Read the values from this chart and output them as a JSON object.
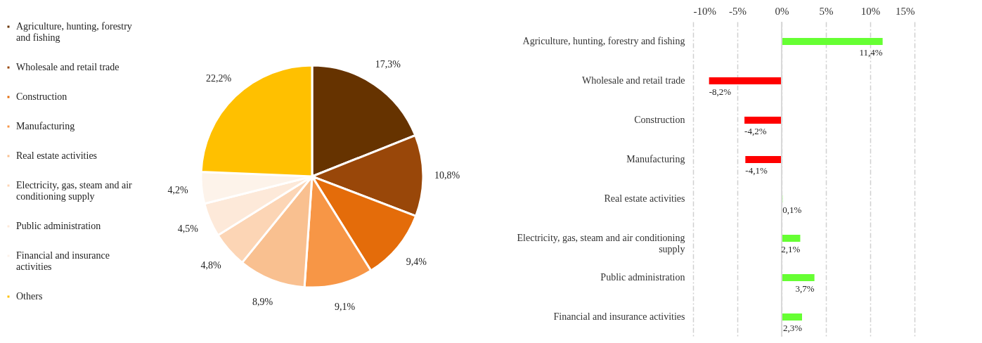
{
  "chart_data": [
    {
      "type": "pie",
      "categories": [
        "Agriculture, hunting, forestry and fishing",
        "Wholesale and retail trade",
        "Construction",
        "Manufacturing",
        "Real estate activities",
        "Electricity, gas, steam and air conditioning supply",
        "Public administration",
        "Financial and insurance activities",
        "Others"
      ],
      "values": [
        17.3,
        10.8,
        9.4,
        9.1,
        8.9,
        4.8,
        4.5,
        4.2,
        22.2
      ],
      "value_labels": [
        "17,3%",
        "10,8%",
        "9,4%",
        "9,1%",
        "8,9%",
        "4,8%",
        "4,5%",
        "4,2%",
        "22,2%"
      ],
      "colors": [
        "#663300",
        "#994709",
        "#e46c0a",
        "#f79646",
        "#f9c090",
        "#fcd5b5",
        "#fde9d9",
        "#fdf3ea",
        "#ffc000"
      ],
      "legend": "left"
    },
    {
      "type": "bar",
      "orientation": "horizontal",
      "categories": [
        "Agriculture, hunting, forestry and fishing",
        "Wholesale and retail trade",
        "Construction",
        "Manufacturing",
        "Real estate activities",
        "Electricity, gas, steam and air conditioning supply",
        "Public administration",
        "Financial and insurance activities"
      ],
      "values": [
        11.4,
        -8.2,
        -4.2,
        -4.1,
        0.1,
        2.1,
        3.7,
        2.3
      ],
      "value_labels": [
        "11,4%",
        "-8,2%",
        "-4,2%",
        "-4,1%",
        "0,1%",
        "2,1%",
        "3,7%",
        "2,3%"
      ],
      "colors": [
        "#66ff33",
        "#ff0000",
        "#ff0000",
        "#ff0000",
        "#66ff33",
        "#66ff33",
        "#66ff33",
        "#66ff33"
      ],
      "xlim": [
        -10,
        15
      ],
      "xticks": [
        {
          "value": -10,
          "label": "-10%"
        },
        {
          "value": -5,
          "label": "-5%"
        },
        {
          "value": 0,
          "label": "0%"
        },
        {
          "value": 5,
          "label": "5%"
        },
        {
          "value": 10,
          "label": "10%"
        },
        {
          "value": 15,
          "label": "15%"
        }
      ],
      "ref_lines": [
        {
          "axis": "x",
          "value": 0,
          "color": "#d9d9d9"
        }
      ],
      "grid": "x"
    }
  ]
}
